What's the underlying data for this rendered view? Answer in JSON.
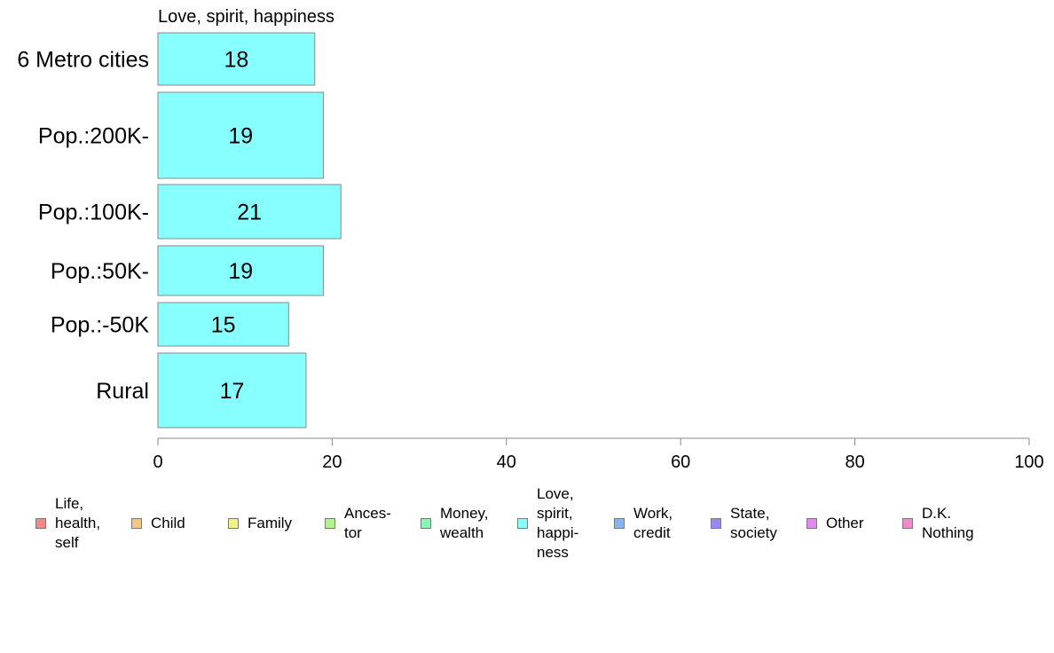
{
  "chart_data": {
    "type": "bar",
    "orientation": "horizontal",
    "title": "Love, spirit, happiness",
    "categories": [
      "6 Metro cities",
      "Pop.:200K-",
      "Pop.:100K-",
      "Pop.:50K-",
      "Pop.:-50K",
      "Rural"
    ],
    "series": [
      {
        "name": "Love, spirit, happiness",
        "values": [
          18,
          19,
          21,
          19,
          15,
          17
        ]
      }
    ],
    "data_labels": [
      "18",
      "19",
      "21",
      "19",
      "15",
      "17"
    ],
    "xlim": [
      0,
      100
    ],
    "x_ticks": [
      0,
      20,
      40,
      60,
      80,
      100
    ],
    "x_tick_labels": [
      "0",
      "20",
      "40",
      "60",
      "80",
      "100"
    ],
    "grid": false,
    "bar_color": "#88ffff",
    "bar_border_color": "#8a8a8a",
    "legend_position": "bottom"
  },
  "legend": {
    "items": [
      {
        "label": "Life,\nhealth,\nself",
        "color": "#f28888"
      },
      {
        "label": "Child",
        "color": "#f5c488"
      },
      {
        "label": "Family",
        "color": "#eef588"
      },
      {
        "label": "Ances-\ntor",
        "color": "#b0f588"
      },
      {
        "label": "Money,\nwealth",
        "color": "#88f5b8"
      },
      {
        "label": "Love,\nspirit,\nhappi-\nness",
        "color": "#88ffff"
      },
      {
        "label": "Work,\ncredit",
        "color": "#88b4f5"
      },
      {
        "label": "State,\nsociety",
        "color": "#9888f5"
      },
      {
        "label": "Other",
        "color": "#e488f5"
      },
      {
        "label": "D.K.\nNothing",
        "color": "#f588c8"
      }
    ]
  }
}
